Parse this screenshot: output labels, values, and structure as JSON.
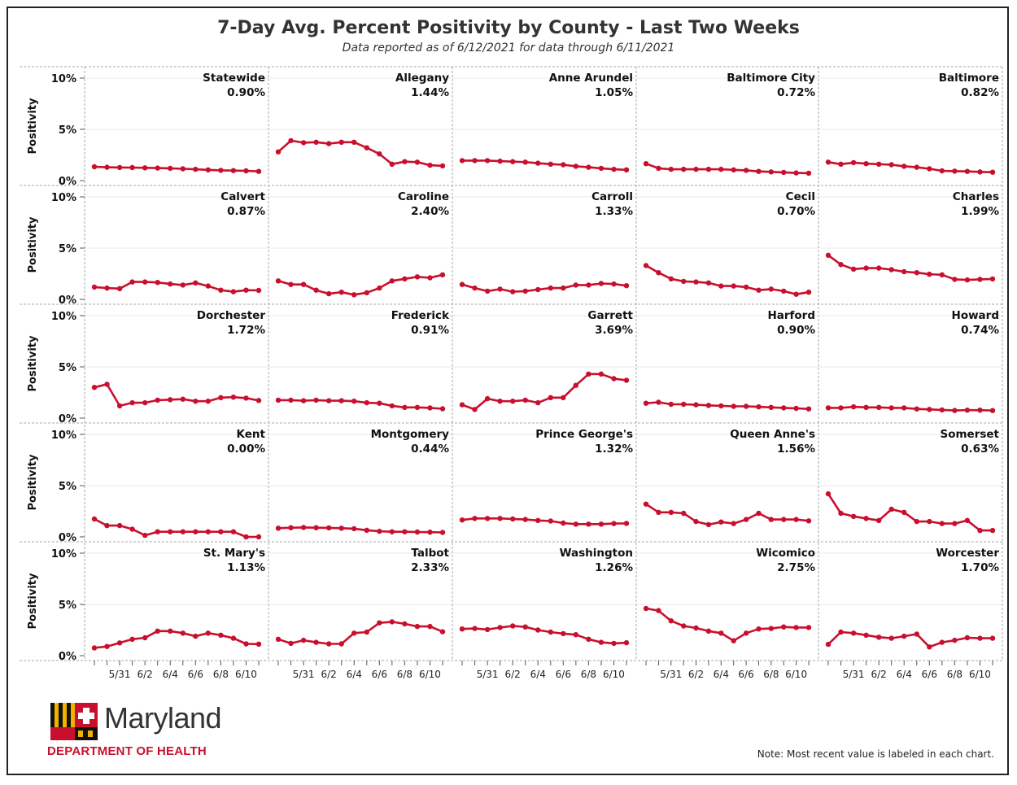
{
  "title": "7-Day Avg. Percent Positivity by County - Last Two Weeks",
  "subtitle": "Data reported as of 6/12/2021 for data through 6/11/2021",
  "logo": {
    "word": "Maryland",
    "department": "DEPARTMENT OF HEALTH"
  },
  "note": "Note: Most recent value is labeled in each chart.",
  "colors": {
    "line": "#c8102e",
    "grid": "#e8e8e8",
    "border": "#aaaaaa"
  },
  "chart_data": {
    "type": "line",
    "ylabel": "Positivity",
    "ylim": [
      0,
      10
    ],
    "y_ticks": [
      "10%",
      "5%",
      "0%"
    ],
    "x_dates": [
      "5/29",
      "5/30",
      "5/31",
      "6/1",
      "6/2",
      "6/3",
      "6/4",
      "6/5",
      "6/6",
      "6/7",
      "6/8",
      "6/9",
      "6/10",
      "6/11"
    ],
    "x_tick_labels": [
      "5/31",
      "6/2",
      "6/4",
      "6/6",
      "6/8",
      "6/10"
    ],
    "panels": [
      {
        "name": "Statewide",
        "latest": "0.90%",
        "values": [
          1.35,
          1.3,
          1.28,
          1.27,
          1.25,
          1.22,
          1.2,
          1.15,
          1.1,
          1.05,
          1.0,
          0.98,
          0.95,
          0.9
        ]
      },
      {
        "name": "Allegany",
        "latest": "1.44%",
        "values": [
          2.8,
          3.9,
          3.7,
          3.75,
          3.6,
          3.75,
          3.75,
          3.2,
          2.6,
          1.6,
          1.85,
          1.8,
          1.5,
          1.44
        ]
      },
      {
        "name": "Anne Arundel",
        "latest": "1.05%",
        "values": [
          1.95,
          1.95,
          1.95,
          1.9,
          1.85,
          1.8,
          1.7,
          1.6,
          1.55,
          1.4,
          1.3,
          1.2,
          1.1,
          1.05
        ]
      },
      {
        "name": "Baltimore City",
        "latest": "0.72%",
        "values": [
          1.65,
          1.2,
          1.1,
          1.1,
          1.1,
          1.1,
          1.1,
          1.05,
          1.0,
          0.9,
          0.85,
          0.8,
          0.75,
          0.72
        ]
      },
      {
        "name": "Baltimore",
        "latest": "0.82%",
        "values": [
          1.8,
          1.6,
          1.75,
          1.65,
          1.6,
          1.55,
          1.4,
          1.3,
          1.15,
          0.95,
          0.92,
          0.9,
          0.85,
          0.82
        ]
      },
      {
        "name": "Calvert",
        "latest": "0.87%",
        "values": [
          1.2,
          1.1,
          1.05,
          1.7,
          1.7,
          1.65,
          1.5,
          1.4,
          1.6,
          1.3,
          0.9,
          0.75,
          0.9,
          0.87
        ]
      },
      {
        "name": "Caroline",
        "latest": "2.40%",
        "values": [
          1.8,
          1.45,
          1.45,
          0.9,
          0.55,
          0.7,
          0.45,
          0.65,
          1.1,
          1.8,
          2.0,
          2.2,
          2.1,
          2.4
        ]
      },
      {
        "name": "Carroll",
        "latest": "1.33%",
        "values": [
          1.45,
          1.1,
          0.8,
          1.0,
          0.75,
          0.8,
          0.95,
          1.1,
          1.1,
          1.4,
          1.4,
          1.55,
          1.5,
          1.33
        ]
      },
      {
        "name": "Cecil",
        "latest": "0.70%",
        "values": [
          3.3,
          2.6,
          2.0,
          1.75,
          1.7,
          1.6,
          1.3,
          1.3,
          1.2,
          0.9,
          1.0,
          0.8,
          0.5,
          0.7
        ]
      },
      {
        "name": "Charles",
        "latest": "1.99%",
        "values": [
          4.3,
          3.4,
          2.95,
          3.05,
          3.05,
          2.9,
          2.7,
          2.6,
          2.45,
          2.4,
          1.95,
          1.9,
          1.95,
          1.99
        ]
      },
      {
        "name": "Dorchester",
        "latest": "1.72%",
        "values": [
          3.0,
          3.3,
          1.2,
          1.5,
          1.5,
          1.75,
          1.8,
          1.85,
          1.65,
          1.65,
          2.0,
          2.05,
          1.95,
          1.72
        ]
      },
      {
        "name": "Frederick",
        "latest": "0.91%",
        "values": [
          1.75,
          1.75,
          1.7,
          1.75,
          1.7,
          1.7,
          1.65,
          1.5,
          1.45,
          1.2,
          1.05,
          1.05,
          1.0,
          0.91
        ]
      },
      {
        "name": "Garrett",
        "latest": "3.69%",
        "values": [
          1.3,
          0.85,
          1.9,
          1.65,
          1.65,
          1.75,
          1.5,
          2.0,
          2.0,
          3.2,
          4.3,
          4.3,
          3.85,
          3.69
        ]
      },
      {
        "name": "Harford",
        "latest": "0.90%",
        "values": [
          1.45,
          1.55,
          1.35,
          1.35,
          1.3,
          1.25,
          1.2,
          1.15,
          1.15,
          1.1,
          1.05,
          1.0,
          0.95,
          0.9
        ]
      },
      {
        "name": "Howard",
        "latest": "0.74%",
        "values": [
          1.0,
          1.0,
          1.1,
          1.05,
          1.05,
          1.0,
          1.0,
          0.9,
          0.85,
          0.8,
          0.75,
          0.78,
          0.78,
          0.74
        ]
      },
      {
        "name": "Kent",
        "latest": "0.00%",
        "values": [
          1.75,
          1.1,
          1.1,
          0.75,
          0.15,
          0.5,
          0.5,
          0.5,
          0.5,
          0.5,
          0.5,
          0.5,
          0.0,
          0.0
        ]
      },
      {
        "name": "Montgomery",
        "latest": "0.44%",
        "values": [
          0.85,
          0.9,
          0.92,
          0.9,
          0.88,
          0.85,
          0.8,
          0.65,
          0.55,
          0.5,
          0.5,
          0.48,
          0.46,
          0.44
        ]
      },
      {
        "name": "Prince George's",
        "latest": "1.32%",
        "values": [
          1.65,
          1.8,
          1.8,
          1.8,
          1.75,
          1.7,
          1.6,
          1.55,
          1.35,
          1.25,
          1.25,
          1.25,
          1.3,
          1.32
        ]
      },
      {
        "name": "Queen Anne's",
        "latest": "1.56%",
        "values": [
          3.2,
          2.4,
          2.4,
          2.3,
          1.5,
          1.2,
          1.45,
          1.3,
          1.7,
          2.3,
          1.7,
          1.7,
          1.7,
          1.56
        ]
      },
      {
        "name": "Somerset",
        "latest": "0.63%",
        "values": [
          4.2,
          2.3,
          2.0,
          1.8,
          1.6,
          2.7,
          2.4,
          1.5,
          1.5,
          1.3,
          1.3,
          1.6,
          0.63,
          0.63
        ]
      },
      {
        "name": "St. Mary's",
        "latest": "1.13%",
        "values": [
          0.75,
          0.9,
          1.25,
          1.6,
          1.75,
          2.4,
          2.4,
          2.2,
          1.9,
          2.2,
          2.0,
          1.7,
          1.15,
          1.13
        ]
      },
      {
        "name": "Talbot",
        "latest": "2.33%",
        "values": [
          1.6,
          1.2,
          1.5,
          1.3,
          1.15,
          1.15,
          2.2,
          2.3,
          3.2,
          3.3,
          3.1,
          2.85,
          2.85,
          2.33
        ]
      },
      {
        "name": "Washington",
        "latest": "1.26%",
        "values": [
          2.6,
          2.65,
          2.55,
          2.75,
          2.9,
          2.8,
          2.5,
          2.3,
          2.15,
          2.05,
          1.6,
          1.3,
          1.2,
          1.26
        ]
      },
      {
        "name": "Wicomico",
        "latest": "2.75%",
        "values": [
          4.6,
          4.4,
          3.4,
          2.9,
          2.7,
          2.4,
          2.2,
          1.45,
          2.2,
          2.6,
          2.65,
          2.8,
          2.75,
          2.75
        ]
      },
      {
        "name": "Worcester",
        "latest": "1.70%",
        "values": [
          1.1,
          2.3,
          2.2,
          2.0,
          1.8,
          1.7,
          1.9,
          2.1,
          0.85,
          1.3,
          1.5,
          1.75,
          1.7,
          1.7
        ]
      }
    ]
  }
}
